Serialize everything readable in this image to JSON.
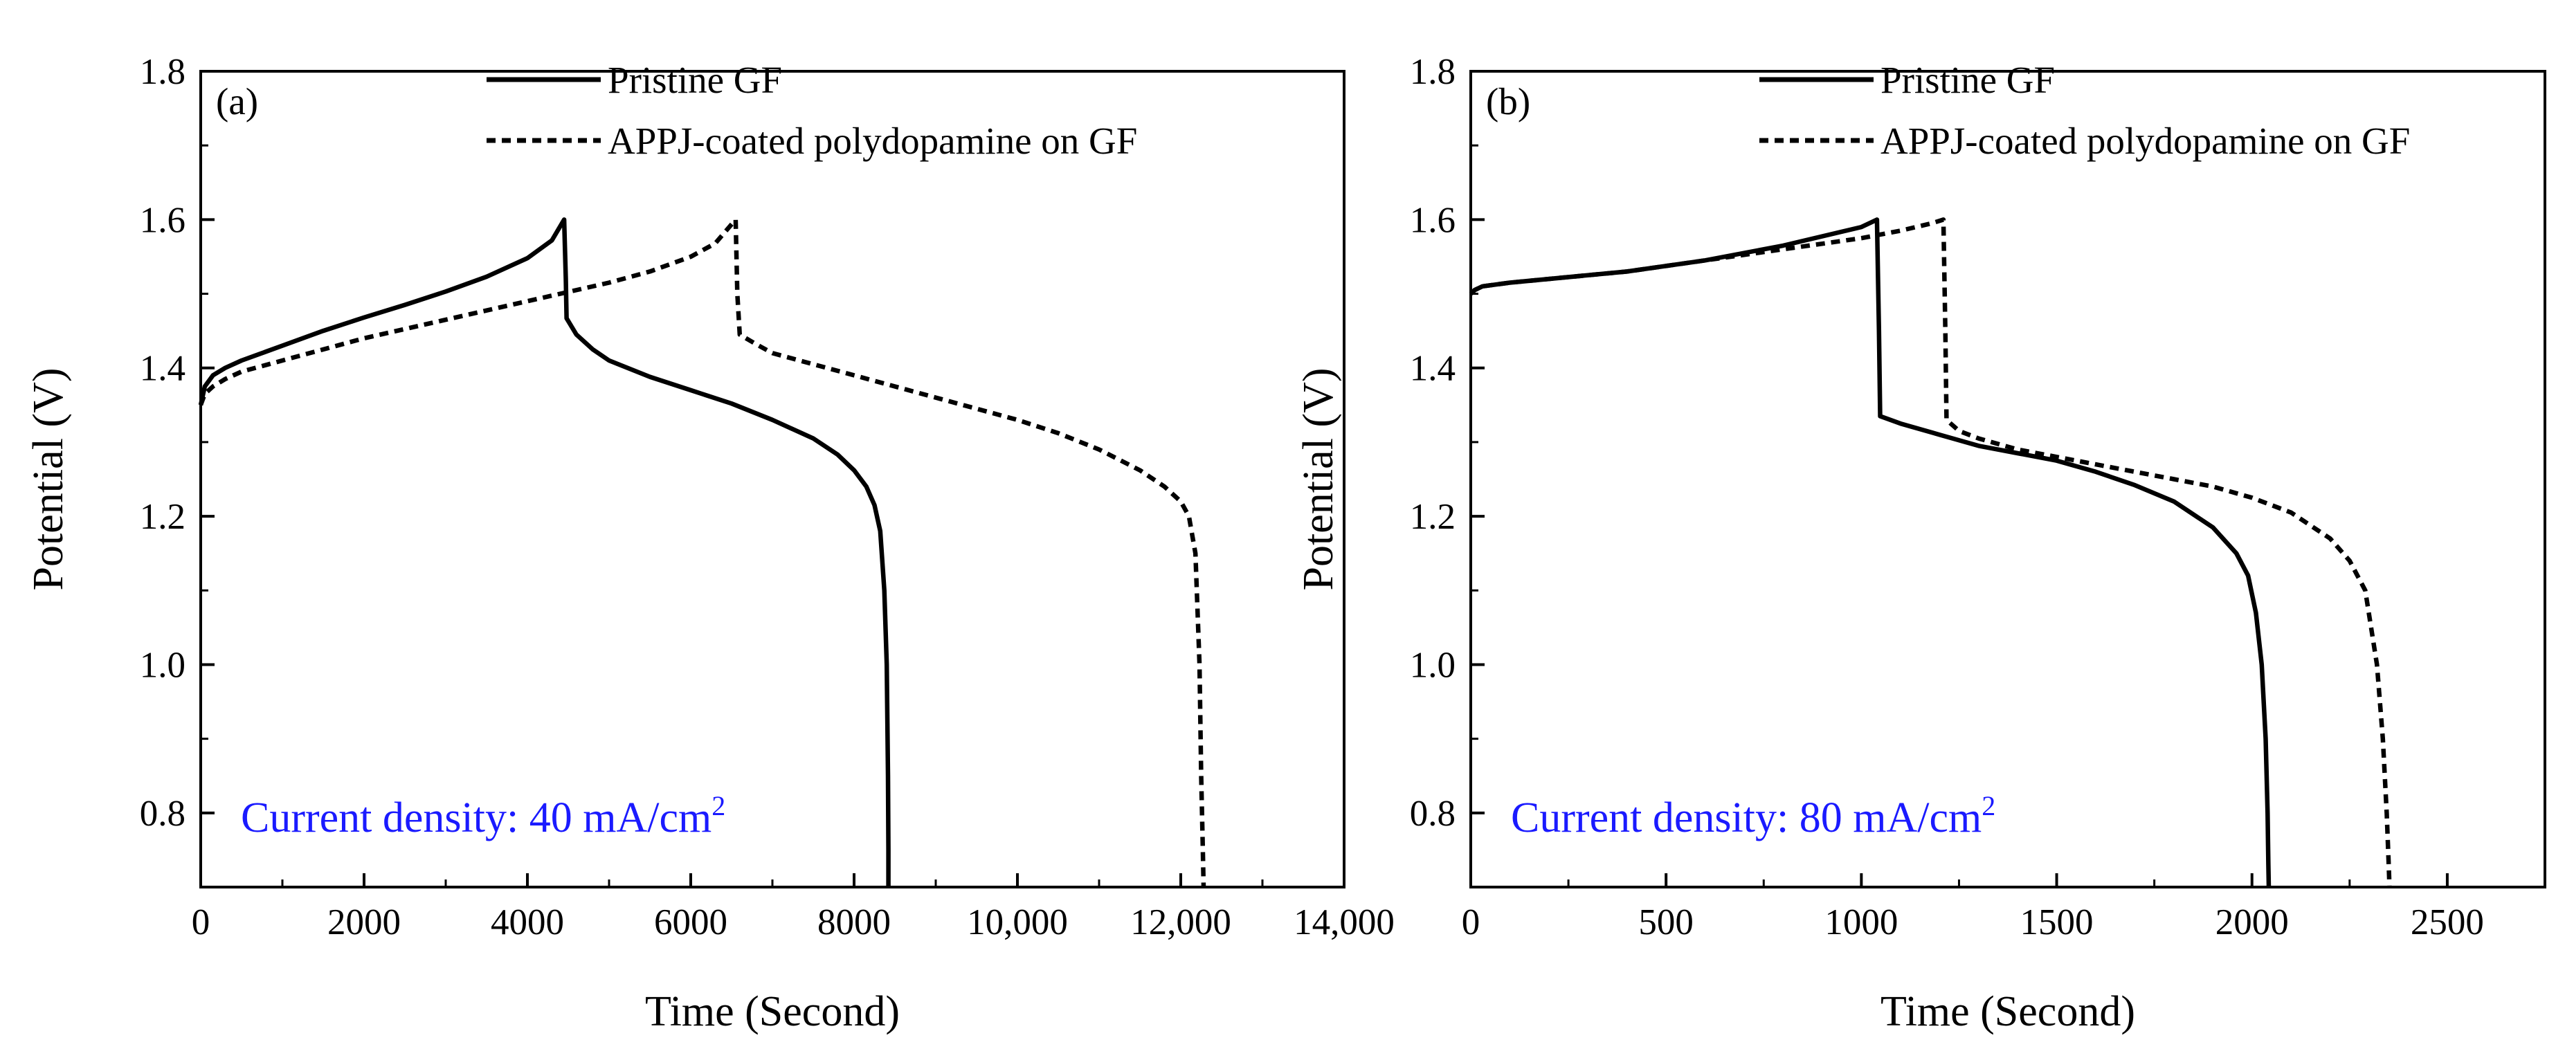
{
  "chart_data": [
    {
      "type": "line",
      "panel_label": "(a)",
      "xlabel": "Time (Second)",
      "ylabel": "Potential (V)",
      "xlim": [
        0,
        14000
      ],
      "ylim": [
        0.7,
        1.8
      ],
      "xticks": [
        0,
        2000,
        4000,
        6000,
        8000,
        10000,
        12000,
        14000
      ],
      "xtick_labels": [
        "0",
        "2000",
        "4000",
        "6000",
        "8000",
        "10,000",
        "12,000",
        "14,000"
      ],
      "yticks": [
        0.8,
        1.0,
        1.2,
        1.4,
        1.6,
        1.8
      ],
      "ytick_labels": [
        "0.8",
        "1.0",
        "1.2",
        "1.4",
        "1.6",
        "1.8"
      ],
      "annotation": {
        "text": "Current density: 40 mA/cm",
        "sup": "2"
      },
      "series": [
        {
          "name": "Pristine GF",
          "style": "solid",
          "x": [
            0,
            50,
            150,
            300,
            500,
            1000,
            1500,
            2000,
            2500,
            3000,
            3500,
            4000,
            4300,
            4450,
            4470,
            4480,
            4600,
            4800,
            5000,
            5500,
            6000,
            6500,
            7000,
            7500,
            7800,
            8000,
            8150,
            8250,
            8320,
            8370,
            8400,
            8415,
            8420,
            8420
          ],
          "y": [
            1.35,
            1.375,
            1.39,
            1.4,
            1.41,
            1.43,
            1.45,
            1.468,
            1.485,
            1.503,
            1.523,
            1.548,
            1.572,
            1.6,
            1.52,
            1.467,
            1.445,
            1.425,
            1.41,
            1.388,
            1.37,
            1.352,
            1.33,
            1.305,
            1.283,
            1.262,
            1.24,
            1.215,
            1.18,
            1.1,
            1.0,
            0.85,
            0.75,
            0.7
          ]
        },
        {
          "name": "APPJ-coated polydopamine on GF",
          "style": "dashed",
          "x": [
            0,
            50,
            150,
            300,
            500,
            1000,
            2000,
            3000,
            4000,
            5000,
            5500,
            6000,
            6300,
            6550,
            6570,
            6600,
            6800,
            7000,
            7500,
            8000,
            8500,
            9000,
            9500,
            10000,
            10500,
            11000,
            11500,
            11800,
            12000,
            12100,
            12180,
            12230,
            12250,
            12270,
            12280
          ],
          "y": [
            1.35,
            1.365,
            1.375,
            1.385,
            1.395,
            1.41,
            1.44,
            1.465,
            1.49,
            1.515,
            1.53,
            1.55,
            1.568,
            1.6,
            1.5,
            1.445,
            1.432,
            1.42,
            1.405,
            1.39,
            1.375,
            1.36,
            1.345,
            1.33,
            1.312,
            1.29,
            1.262,
            1.24,
            1.22,
            1.2,
            1.15,
            1.0,
            0.85,
            0.75,
            0.7
          ]
        }
      ]
    },
    {
      "type": "line",
      "panel_label": "(b)",
      "xlabel": "Time (Second)",
      "ylabel": "Potential (V)",
      "xlim": [
        0,
        2750
      ],
      "ylim": [
        0.7,
        1.8
      ],
      "xticks": [
        0,
        500,
        1000,
        1500,
        2000,
        2500
      ],
      "xtick_labels": [
        "0",
        "500",
        "1000",
        "1500",
        "2000",
        "2500"
      ],
      "yticks": [
        0.8,
        1.0,
        1.2,
        1.4,
        1.6,
        1.8
      ],
      "ytick_labels": [
        "0.8",
        "1.0",
        "1.2",
        "1.4",
        "1.6",
        "1.8"
      ],
      "annotation": {
        "text": "Current density: 80 mA/cm",
        "sup": "2"
      },
      "series": [
        {
          "name": "Pristine GF",
          "style": "solid",
          "x": [
            0,
            10,
            30,
            100,
            200,
            400,
            600,
            800,
            1000,
            1040,
            1045,
            1048,
            1100,
            1200,
            1300,
            1400,
            1500,
            1600,
            1700,
            1800,
            1900,
            1960,
            1990,
            2010,
            2025,
            2035,
            2040,
            2042,
            2043
          ],
          "y": [
            1.5,
            1.505,
            1.51,
            1.515,
            1.52,
            1.53,
            1.545,
            1.565,
            1.59,
            1.6,
            1.45,
            1.335,
            1.325,
            1.31,
            1.295,
            1.285,
            1.275,
            1.26,
            1.242,
            1.22,
            1.185,
            1.15,
            1.12,
            1.07,
            1.0,
            0.9,
            0.8,
            0.73,
            0.7
          ]
        },
        {
          "name": "APPJ-coated polydopamine on GF",
          "style": "dashed",
          "x": [
            0,
            10,
            30,
            100,
            200,
            400,
            600,
            800,
            1000,
            1100,
            1180,
            1210,
            1215,
            1218,
            1250,
            1300,
            1400,
            1500,
            1600,
            1700,
            1800,
            1900,
            2000,
            2100,
            2200,
            2250,
            2290,
            2320,
            2335,
            2345,
            2350,
            2352
          ],
          "y": [
            1.5,
            1.505,
            1.51,
            1.515,
            1.52,
            1.53,
            1.545,
            1.56,
            1.575,
            1.585,
            1.595,
            1.6,
            1.45,
            1.33,
            1.315,
            1.305,
            1.29,
            1.28,
            1.27,
            1.26,
            1.25,
            1.24,
            1.225,
            1.205,
            1.17,
            1.14,
            1.1,
            1.0,
            0.9,
            0.8,
            0.73,
            0.7
          ]
        }
      ]
    }
  ]
}
